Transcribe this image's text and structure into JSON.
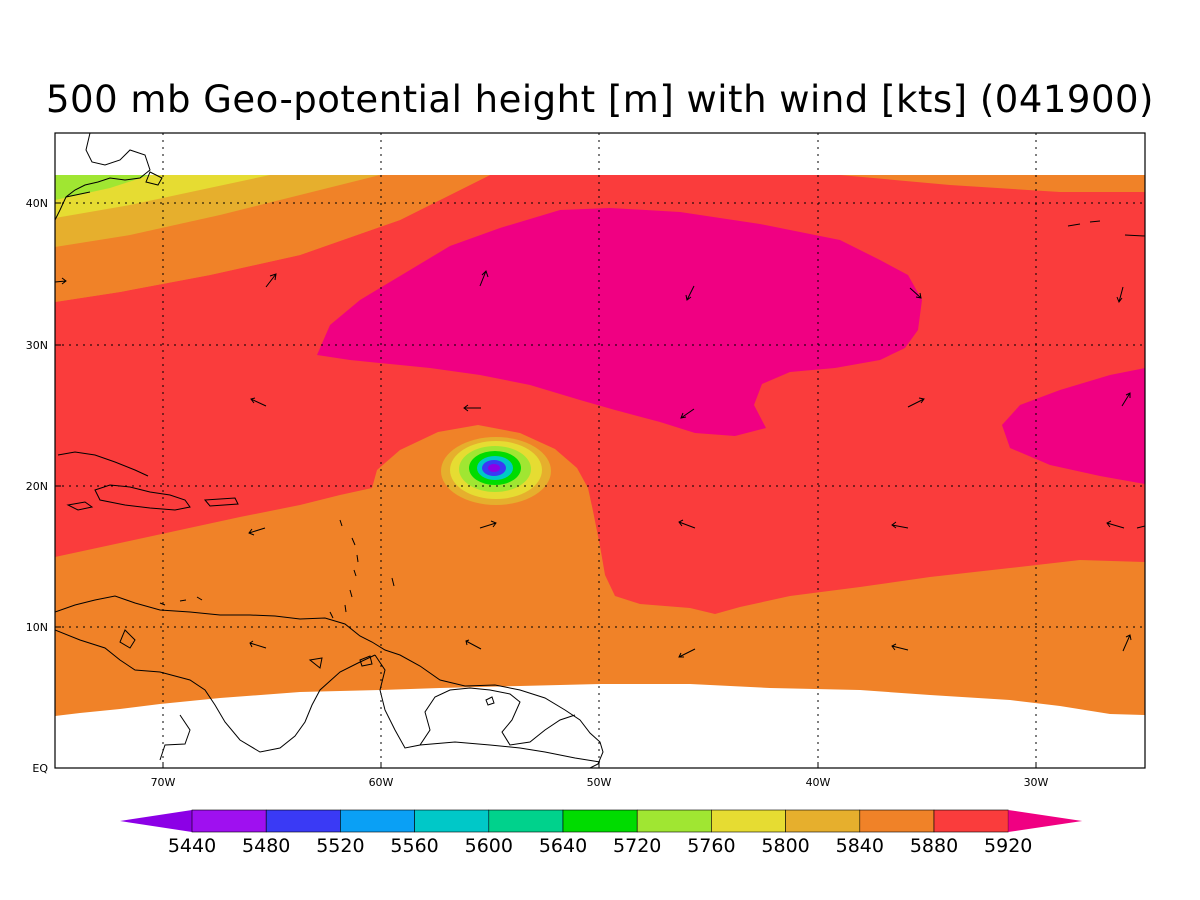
{
  "title": "500 mb Geo-potential height [m] with wind [kts] (041900)",
  "lat_labels": [
    "40N",
    "30N",
    "20N",
    "10N",
    "EQ"
  ],
  "lon_labels": [
    "70W",
    "60W",
    "50W",
    "40W",
    "30W"
  ],
  "colorbar": {
    "labels": [
      "5440",
      "5480",
      "5520",
      "5560",
      "5600",
      "5640",
      "5720",
      "5760",
      "5800",
      "5840",
      "5880",
      "5920"
    ],
    "colors": [
      "#8c00e6",
      "#9f10f0",
      "#3a3af5",
      "#0aa0f5",
      "#00c8c8",
      "#00d28c",
      "#00dc00",
      "#a0e632",
      "#e6dc32",
      "#e6af2d",
      "#f08228",
      "#fa3c3c",
      "#f00082"
    ]
  },
  "colors": {
    "magenta": "#f00082",
    "red": "#fa3c3c",
    "orange": "#f08228",
    "dark_orange": "#e6af2d",
    "yellow": "#e6dc32",
    "light_green": "#a0e632",
    "green": "#00dc00",
    "cyan": "#00c8c8",
    "blue": "#3a3af5",
    "purple": "#8c00e6"
  }
}
